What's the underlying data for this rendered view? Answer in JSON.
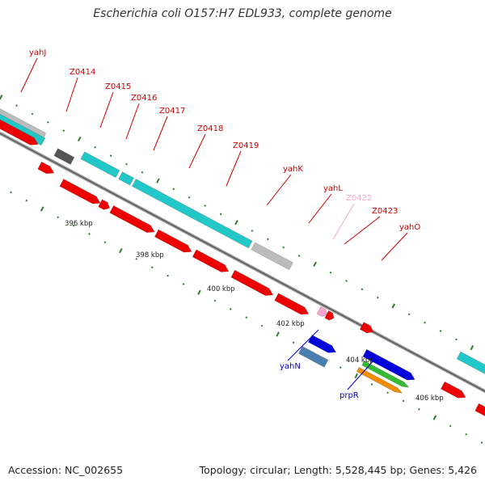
{
  "title": "Escherichia coli O157:H7 EDL933, complete genome",
  "footer": {
    "accession": "Accession: NC_002655",
    "topology": "Topology: circular; Length: 5,528,445 bp; Genes: 5,426"
  },
  "colors": {
    "red": "#ee0000",
    "cyan": "#22c8c8",
    "gray": "#bcbcbc",
    "darkgray": "#555555",
    "pink": "#f4a6d0",
    "blue": "#0000dd",
    "steelblue": "#4a7fb0",
    "green": "#33bb33",
    "orange": "#f28c00",
    "tick": "#2f7a2f",
    "backbone": "#888888"
  },
  "kbp_labels": [
    "396 kbp",
    "398 kbp",
    "400 kbp",
    "402 kbp",
    "404 kbp",
    "406 kbp"
  ],
  "gene_labels": [
    {
      "text": "yahJ",
      "color": "#cc0000"
    },
    {
      "text": "Z0414",
      "color": "#cc0000"
    },
    {
      "text": "Z0415",
      "color": "#cc0000"
    },
    {
      "text": "Z0416",
      "color": "#cc0000"
    },
    {
      "text": "Z0417",
      "color": "#cc0000"
    },
    {
      "text": "Z0418",
      "color": "#cc0000"
    },
    {
      "text": "Z0419",
      "color": "#cc0000"
    },
    {
      "text": "yahK",
      "color": "#cc0000"
    },
    {
      "text": "yahL",
      "color": "#cc0000"
    },
    {
      "text": "Z0422",
      "color": "#f4a6d0"
    },
    {
      "text": "Z0423",
      "color": "#cc0000"
    },
    {
      "text": "yahO",
      "color": "#cc0000"
    },
    {
      "text": "yahN",
      "color": "#0000cc"
    },
    {
      "text": "prpR",
      "color": "#0000cc"
    }
  ]
}
